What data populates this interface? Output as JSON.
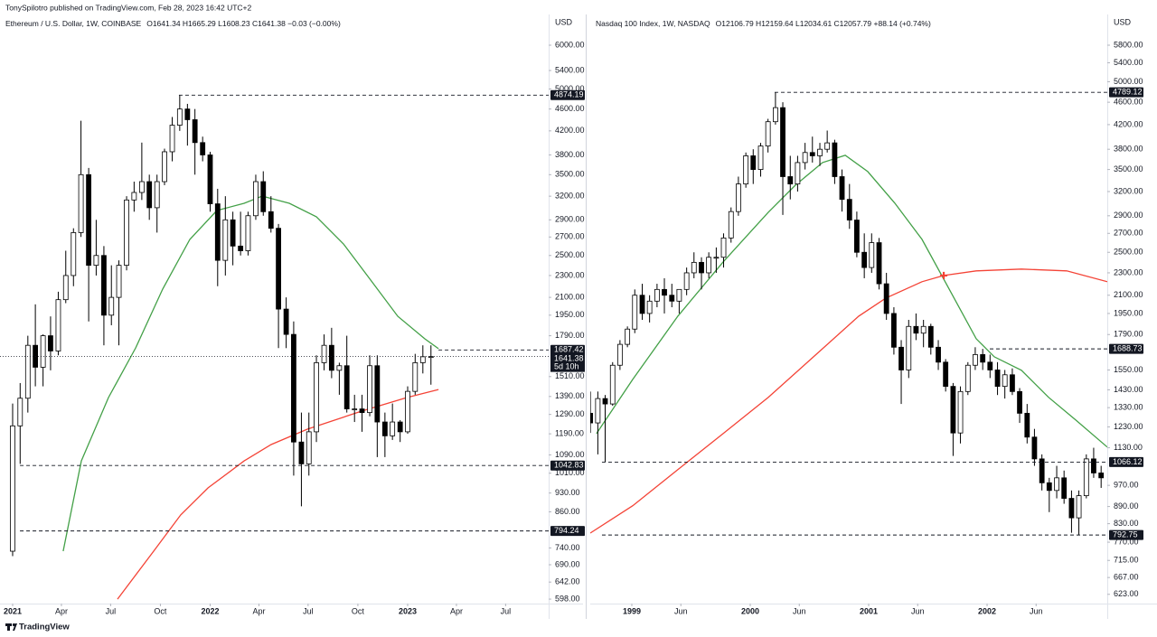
{
  "header": {
    "publisher": "TonySpilotro published on TradingView.com, Feb 28, 2023 16:42 UTC+2"
  },
  "footer": {
    "brand": "TradingView"
  },
  "chart_data": [
    {
      "type": "candlestick",
      "title": "Ethereum / U.S. Dollar, 1W, COINBASE",
      "quote": "O1641.34  H1665.29  L1608.23  C1641.38  −0.03 (−0.00%)",
      "currency": "USD",
      "log_scale": true,
      "grid": false,
      "xlim": [
        2020.936,
        2023.714
      ],
      "xticks": [
        2021,
        {
          "value": 2021.247,
          "label": "Apr"
        },
        {
          "value": 2021.496,
          "label": "Jul"
        },
        {
          "value": 2021.748,
          "label": "Oct"
        },
        2022,
        {
          "value": 2022.247,
          "label": "Apr"
        },
        {
          "value": 2022.496,
          "label": "Jul"
        },
        {
          "value": 2022.748,
          "label": "Oct"
        },
        2023,
        {
          "value": 2023.247,
          "label": "Apr"
        },
        {
          "value": 2023.496,
          "label": "Jul"
        }
      ],
      "ylim": [
        587,
        6819
      ],
      "yticks": [
        {
          "value": 598,
          "label": "598.00"
        },
        {
          "value": 642,
          "label": "642.00"
        },
        {
          "value": 690,
          "label": "690.00"
        },
        {
          "value": 740,
          "label": "740.00"
        },
        {
          "value": 860,
          "label": "860.00"
        },
        {
          "value": 930,
          "label": "930.00"
        },
        {
          "value": 1010,
          "label": "1010.00"
        },
        {
          "value": 1090,
          "label": "1090.00"
        },
        {
          "value": 1190,
          "label": "1190.00"
        },
        {
          "value": 1290,
          "label": "1290.00"
        },
        {
          "value": 1390,
          "label": "1390.00"
        },
        {
          "value": 1510,
          "label": "1510.00"
        },
        {
          "value": 1790,
          "label": "1790.00"
        },
        {
          "value": 1950,
          "label": "1950.00"
        },
        {
          "value": 2100,
          "label": "2100.00"
        },
        {
          "value": 2300,
          "label": "2300.00"
        },
        {
          "value": 2500,
          "label": "2500.00"
        },
        {
          "value": 2700,
          "label": "2700.00"
        },
        {
          "value": 2900,
          "label": "2900.00"
        },
        {
          "value": 3200,
          "label": "3200.00"
        },
        {
          "value": 3500,
          "label": "3500.00"
        },
        {
          "value": 3800,
          "label": "3800.00"
        },
        {
          "value": 4200,
          "label": "4200.00"
        },
        {
          "value": 4600,
          "label": "4600.00"
        },
        {
          "value": 5000,
          "label": "5000.00"
        },
        {
          "value": 5400,
          "label": "5400.00"
        },
        {
          "value": 6000,
          "label": "6000.00"
        }
      ],
      "x": [
        2021.0,
        2021.038,
        2021.077,
        2021.115,
        2021.154,
        2021.192,
        2021.231,
        2021.269,
        2021.308,
        2021.346,
        2021.385,
        2021.423,
        2021.462,
        2021.5,
        2021.538,
        2021.577,
        2021.615,
        2021.654,
        2021.692,
        2021.731,
        2021.769,
        2021.808,
        2021.846,
        2021.885,
        2021.923,
        2021.962,
        2022.0,
        2022.038,
        2022.077,
        2022.115,
        2022.154,
        2022.192,
        2022.231,
        2022.269,
        2022.308,
        2022.346,
        2022.385,
        2022.423,
        2022.462,
        2022.5,
        2022.538,
        2022.577,
        2022.615,
        2022.654,
        2022.692,
        2022.731,
        2022.769,
        2022.808,
        2022.846,
        2022.885,
        2022.923,
        2022.962,
        2023.0,
        2023.038,
        2023.077,
        2023.118
      ],
      "open": [
        730,
        1230,
        1380,
        1720,
        1570,
        1790,
        1680,
        2080,
        2300,
        2750,
        3500,
        2400,
        2500,
        1950,
        2100,
        2400,
        3150,
        3250,
        3400,
        3050,
        3400,
        3850,
        4300,
        4600,
        4400,
        4000,
        3800,
        3100,
        2450,
        2900,
        2600,
        2550,
        2950,
        3400,
        3000,
        2800,
        2000,
        1800,
        1150,
        1050,
        1200,
        1600,
        1720,
        1550,
        1580,
        1320,
        1320,
        1300,
        1580,
        1250,
        1180,
        1250,
        1200,
        1420,
        1600,
        1640
      ],
      "high": [
        1350,
        1470,
        1790,
        2040,
        1800,
        1940,
        2150,
        2550,
        2800,
        4380,
        3600,
        2900,
        2600,
        2400,
        2450,
        3200,
        3400,
        4000,
        3500,
        3500,
        3900,
        4450,
        4874,
        4700,
        4600,
        4100,
        3850,
        3300,
        3200,
        3000,
        3000,
        3000,
        3500,
        3550,
        3200,
        2850,
        2100,
        1900,
        1300,
        1300,
        1650,
        1800,
        1850,
        1600,
        1790,
        1400,
        1400,
        1650,
        1650,
        1300,
        1350,
        1260,
        1450,
        1660,
        1720,
        1720
      ],
      "low": [
        715,
        1050,
        1300,
        1450,
        1450,
        1550,
        1650,
        2050,
        2200,
        2700,
        1900,
        2300,
        1720,
        1870,
        1720,
        2350,
        3000,
        3150,
        2900,
        2750,
        3350,
        3700,
        4200,
        3950,
        3500,
        3700,
        3000,
        2200,
        2300,
        2400,
        2500,
        2500,
        2900,
        2950,
        2750,
        1700,
        1700,
        1000,
        880,
        1000,
        1150,
        1550,
        1500,
        1400,
        1300,
        1250,
        1200,
        1280,
        1080,
        1080,
        1160,
        1150,
        1190,
        1400,
        1530,
        1460
      ],
      "close": [
        1230,
        1380,
        1720,
        1570,
        1790,
        1680,
        2080,
        2300,
        2750,
        3500,
        2400,
        2500,
        1950,
        2100,
        2400,
        3150,
        3250,
        3400,
        3050,
        3400,
        3850,
        4300,
        4600,
        4400,
        4000,
        3800,
        3100,
        2450,
        2900,
        2600,
        2550,
        2950,
        3400,
        3000,
        2800,
        2000,
        1800,
        1150,
        1050,
        1200,
        1600,
        1720,
        1550,
        1580,
        1320,
        1320,
        1300,
        1580,
        1250,
        1180,
        1250,
        1200,
        1420,
        1600,
        1640,
        1641.38
      ],
      "series": [
        {
          "color": "#43a047",
          "x": [
            2021.256,
            2021.348,
            2021.485,
            2021.623,
            2021.76,
            2021.897,
            2022.034,
            2022.172,
            2022.263,
            2022.401,
            2022.538,
            2022.675,
            2022.813,
            2022.95,
            2023.087,
            2023.156
          ],
          "values": [
            730,
            1063,
            1384,
            1702,
            2174,
            2673,
            3015,
            3107,
            3202,
            3107,
            2937,
            2623,
            2257,
            1941,
            1767,
            1696
          ]
        },
        {
          "color": "#f44336",
          "x": [
            2021.531,
            2021.714,
            2021.851,
            2021.989,
            2022.172,
            2022.309,
            2022.492,
            2022.767,
            2022.996,
            2023.156
          ],
          "values": [
            598,
            730,
            849,
            950,
            1063,
            1138,
            1213,
            1308,
            1384,
            1431
          ]
        }
      ],
      "levels": [
        {
          "value": 4874.19,
          "x_start": 2021.842
        },
        {
          "value": 1687.42,
          "x_start": 2023.156
        },
        {
          "value": 1042.83,
          "x_start": 2021.037
        },
        {
          "value": 794.24,
          "x_start": 2021.037
        }
      ],
      "last": {
        "value": 1641.38,
        "countdown": "5d 10h"
      }
    },
    {
      "type": "candlestick",
      "title": "Nasdaq 100 Index, 1W, NASDAQ",
      "quote": "O12106.79  H12159.64  L12034.61  C12057.79  +88.14 (+0.74%)",
      "currency": "USD",
      "log_scale": true,
      "grid": false,
      "xlim": [
        1998.649,
        2003.015
      ],
      "xticks": [
        1999,
        {
          "value": 1999.414,
          "label": "Jun"
        },
        2000,
        {
          "value": 2000.414,
          "label": "Jun"
        },
        2001,
        {
          "value": 2001.414,
          "label": "Jun"
        },
        2002,
        {
          "value": 2002.414,
          "label": "Jun"
        }
      ],
      "ylim": [
        600,
        6571
      ],
      "yticks": [
        {
          "value": 623,
          "label": "623.00"
        },
        {
          "value": 667,
          "label": "667.00"
        },
        {
          "value": 715,
          "label": "715.00"
        },
        {
          "value": 770,
          "label": "770.00"
        },
        {
          "value": 830,
          "label": "830.00"
        },
        {
          "value": 890,
          "label": "890.00"
        },
        {
          "value": 970,
          "label": "970.00"
        },
        {
          "value": 1130,
          "label": "1130.00"
        },
        {
          "value": 1230,
          "label": "1230.00"
        },
        {
          "value": 1330,
          "label": "1330.00"
        },
        {
          "value": 1430,
          "label": "1430.00"
        },
        {
          "value": 1550,
          "label": "1550.00"
        },
        {
          "value": 1790,
          "label": "1790.00"
        },
        {
          "value": 1950,
          "label": "1950.00"
        },
        {
          "value": 2100,
          "label": "2100.00"
        },
        {
          "value": 2300,
          "label": "2300.00"
        },
        {
          "value": 2500,
          "label": "2500.00"
        },
        {
          "value": 2700,
          "label": "2700.00"
        },
        {
          "value": 2900,
          "label": "2900.00"
        },
        {
          "value": 3200,
          "label": "3200.00"
        },
        {
          "value": 3500,
          "label": "3500.00"
        },
        {
          "value": 3800,
          "label": "3800.00"
        },
        {
          "value": 4200,
          "label": "4200.00"
        },
        {
          "value": 4600,
          "label": "4600.00"
        },
        {
          "value": 5000,
          "label": "5000.00"
        },
        {
          "value": 5400,
          "label": "5400.00"
        },
        {
          "value": 5800,
          "label": "5800.00"
        }
      ],
      "x": [
        1998.65,
        1998.713,
        1998.775,
        1998.838,
        1998.9,
        1998.963,
        1999.025,
        1999.088,
        1999.15,
        1999.213,
        1999.275,
        1999.338,
        1999.4,
        1999.463,
        1999.525,
        1999.588,
        1999.65,
        1999.713,
        1999.775,
        1999.838,
        1999.9,
        1999.963,
        2000.025,
        2000.088,
        2000.15,
        2000.213,
        2000.275,
        2000.338,
        2000.4,
        2000.463,
        2000.525,
        2000.588,
        2000.65,
        2000.713,
        2000.775,
        2000.838,
        2000.9,
        2000.963,
        2001.025,
        2001.088,
        2001.15,
        2001.213,
        2001.275,
        2001.338,
        2001.4,
        2001.463,
        2001.525,
        2001.588,
        2001.65,
        2001.713,
        2001.775,
        2001.838,
        2001.9,
        2001.963,
        2002.025,
        2002.088,
        2002.15,
        2002.213,
        2002.275,
        2002.338,
        2002.4,
        2002.463,
        2002.525,
        2002.588,
        2002.65,
        2002.713,
        2002.775,
        2002.838,
        2002.9,
        2002.963
      ],
      "open": [
        1300,
        1250,
        1380,
        1350,
        1580,
        1720,
        1830,
        2100,
        1950,
        2050,
        2150,
        2100,
        2050,
        2150,
        2300,
        2400,
        2300,
        2450,
        2450,
        2650,
        2950,
        3300,
        3700,
        3500,
        3850,
        4250,
        4500,
        3400,
        3300,
        3600,
        3750,
        3700,
        3800,
        3900,
        3400,
        3100,
        2850,
        2500,
        2350,
        2600,
        2200,
        1950,
        1700,
        1550,
        1850,
        1800,
        1850,
        1700,
        1600,
        1450,
        1200,
        1420,
        1580,
        1650,
        1600,
        1550,
        1450,
        1520,
        1420,
        1300,
        1180,
        1080,
        980,
        950,
        1000,
        920,
        850,
        930,
        1080,
        1020
      ],
      "high": [
        1420,
        1420,
        1400,
        1600,
        1750,
        1850,
        2150,
        2200,
        2100,
        2200,
        2250,
        2200,
        2150,
        2350,
        2500,
        2450,
        2500,
        2550,
        2700,
        3000,
        3400,
        3750,
        3800,
        3900,
        4300,
        4789.12,
        4600,
        3700,
        3700,
        3900,
        4000,
        3900,
        4100,
        3950,
        3500,
        3300,
        2950,
        2700,
        2700,
        2650,
        2300,
        2000,
        1750,
        1900,
        1950,
        1900,
        1870,
        1750,
        1620,
        1470,
        1450,
        1600,
        1700,
        1688.73,
        1650,
        1600,
        1550,
        1560,
        1440,
        1350,
        1220,
        1100,
        1000,
        1050,
        1030,
        950,
        950,
        1100,
        1130,
        1050
      ],
      "low": [
        1200,
        1100,
        1066.12,
        1340,
        1550,
        1700,
        1800,
        1900,
        1880,
        2000,
        1950,
        2000,
        1950,
        2100,
        2250,
        2150,
        2250,
        2300,
        2350,
        2600,
        2900,
        3250,
        3300,
        3400,
        3750,
        4200,
        2910,
        3100,
        3200,
        3500,
        3600,
        3550,
        3750,
        3300,
        2950,
        2750,
        2450,
        2250,
        2300,
        2150,
        1900,
        1650,
        1350,
        1500,
        1750,
        1700,
        1650,
        1550,
        1420,
        1093,
        1150,
        1400,
        1550,
        1550,
        1500,
        1400,
        1380,
        1400,
        1250,
        1150,
        1050,
        950,
        870,
        920,
        900,
        800,
        792.75,
        920,
        1000,
        960
      ],
      "close": [
        1250,
        1380,
        1350,
        1580,
        1720,
        1830,
        2100,
        1950,
        2050,
        2150,
        2100,
        2050,
        2150,
        2300,
        2400,
        2300,
        2450,
        2450,
        2650,
        2950,
        3300,
        3700,
        3500,
        3850,
        4250,
        4500,
        3400,
        3300,
        3600,
        3750,
        3700,
        3800,
        3900,
        3400,
        3100,
        2850,
        2500,
        2350,
        2600,
        2200,
        1950,
        1700,
        1550,
        1850,
        1800,
        1850,
        1700,
        1600,
        1450,
        1200,
        1420,
        1580,
        1650,
        1600,
        1550,
        1450,
        1520,
        1420,
        1300,
        1180,
        1080,
        980,
        950,
        1000,
        920,
        850,
        930,
        1080,
        1020,
        1000
      ],
      "series": [
        {
          "color": "#43a047",
          "x": [
            1998.702,
            1999.008,
            1999.389,
            1999.771,
            2000.153,
            2000.382,
            2000.611,
            2000.802,
            2000.992,
            2001.221,
            2001.45,
            2001.679,
            2001.908,
            2002.061,
            2002.29,
            2002.519,
            2002.748,
            2003.015
          ],
          "values": [
            1197,
            1492,
            1929,
            2404,
            2942,
            3284,
            3600,
            3707,
            3470,
            3052,
            2635,
            2154,
            1760,
            1635,
            1548,
            1387,
            1265,
            1133
          ]
        },
        {
          "color": "#f44336",
          "x": [
            1998.649,
            1999.008,
            1999.389,
            1999.771,
            2000.153,
            2000.534,
            2000.916,
            2001.145,
            2001.45,
            2001.634,
            2001.908,
            2002.29,
            2002.672,
            2003.015
          ],
          "values": [
            799,
            893,
            1034,
            1197,
            1387,
            1635,
            1929,
            2076,
            2218,
            2275,
            2318,
            2335,
            2318,
            2218
          ]
        }
      ],
      "levels": [
        {
          "value": 4789.12,
          "x_start": 2000.206
        },
        {
          "value": 1688.73,
          "x_start": 2002.023
        },
        {
          "value": 1066.12,
          "x_start": 1998.748
        },
        {
          "value": 792.75,
          "x_start": 1998.748
        }
      ],
      "cross": {
        "x": 2001.634,
        "y": 2275,
        "color": "#f44336"
      }
    }
  ]
}
